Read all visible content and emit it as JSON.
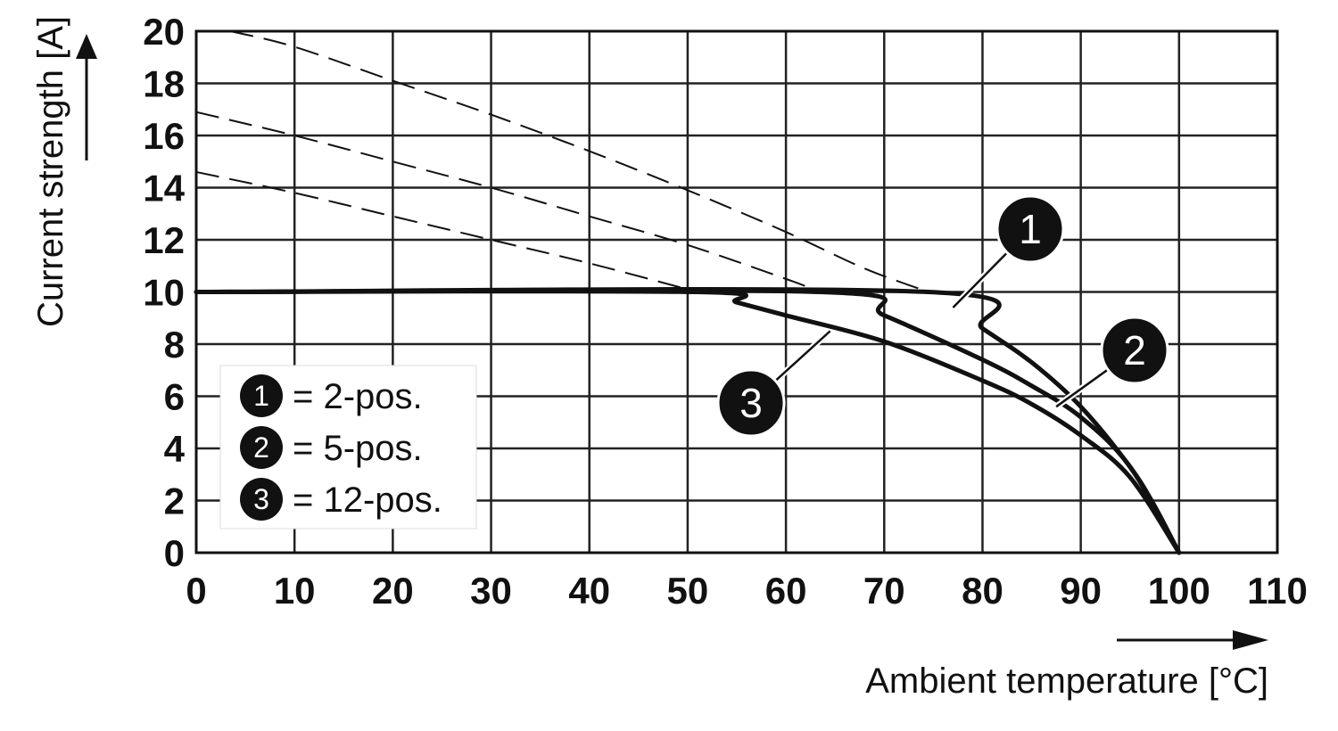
{
  "chart_data": {
    "type": "line",
    "xlabel": "Ambient temperature [°C]",
    "ylabel": "Current strength [A]",
    "xlim": [
      0,
      110
    ],
    "ylim": [
      0,
      20
    ],
    "x_ticks": [
      0,
      10,
      20,
      30,
      40,
      50,
      60,
      70,
      80,
      90,
      100,
      110
    ],
    "y_ticks": [
      0,
      2,
      4,
      6,
      8,
      10,
      12,
      14,
      16,
      18,
      20
    ],
    "x_tick_labels": [
      "0",
      "10",
      "20",
      "30",
      "40",
      "50",
      "60",
      "70",
      "80",
      "90",
      "100",
      "110"
    ],
    "y_tick_labels": [
      "0",
      "2",
      "4",
      "6",
      "8",
      "10",
      "12",
      "14",
      "16",
      "18",
      "20"
    ],
    "grid": true,
    "legend_position": "bottom-left",
    "legend": [
      {
        "badge": "1",
        "label": "= 2-pos."
      },
      {
        "badge": "2",
        "label": "= 5-pos."
      },
      {
        "badge": "3",
        "label": "= 12-pos."
      }
    ],
    "series": [
      {
        "id": "1",
        "limit": 10,
        "solid": [
          [
            0,
            10
          ],
          [
            74.5,
            10
          ],
          [
            80,
            8.6
          ],
          [
            85,
            7.3
          ],
          [
            90,
            5.6
          ],
          [
            95,
            3.3
          ],
          [
            97.5,
            1.8
          ],
          [
            100,
            0
          ]
        ],
        "dashed": [
          [
            3.5,
            20
          ],
          [
            10,
            19.4
          ],
          [
            20,
            18.1
          ],
          [
            30,
            16.8
          ],
          [
            40,
            15.4
          ],
          [
            50,
            13.9
          ],
          [
            60,
            12.3
          ],
          [
            68,
            10.9
          ],
          [
            74.5,
            10
          ]
        ]
      },
      {
        "id": "2",
        "limit": 10,
        "solid": [
          [
            0,
            10
          ],
          [
            63.5,
            10
          ],
          [
            70,
            9.1
          ],
          [
            80,
            7.4
          ],
          [
            85,
            6.4
          ],
          [
            90,
            5.2
          ],
          [
            95,
            3.3
          ],
          [
            100,
            0
          ]
        ],
        "dashed": [
          [
            0,
            16.9
          ],
          [
            10,
            16.0
          ],
          [
            20,
            15.0
          ],
          [
            30,
            14.0
          ],
          [
            40,
            12.9
          ],
          [
            50,
            11.8
          ],
          [
            60,
            10.5
          ],
          [
            63.5,
            10
          ]
        ]
      },
      {
        "id": "3",
        "limit": 10,
        "solid": [
          [
            0,
            10
          ],
          [
            51,
            10
          ],
          [
            55,
            9.6
          ],
          [
            60,
            9.1
          ],
          [
            70,
            8.1
          ],
          [
            80,
            6.6
          ],
          [
            85,
            5.7
          ],
          [
            90,
            4.5
          ],
          [
            95,
            2.9
          ],
          [
            100,
            0
          ]
        ],
        "dashed": [
          [
            0,
            14.6
          ],
          [
            10,
            13.8
          ],
          [
            20,
            12.9
          ],
          [
            30,
            12.0
          ],
          [
            40,
            11.1
          ],
          [
            50,
            10.1
          ],
          [
            51,
            10
          ]
        ]
      }
    ],
    "callouts": [
      {
        "badge": "1",
        "target": [
          77,
          9.4
        ]
      },
      {
        "badge": "2",
        "target": [
          87.5,
          5.6
        ]
      },
      {
        "badge": "3",
        "target": [
          64.5,
          8.5
        ]
      }
    ]
  }
}
